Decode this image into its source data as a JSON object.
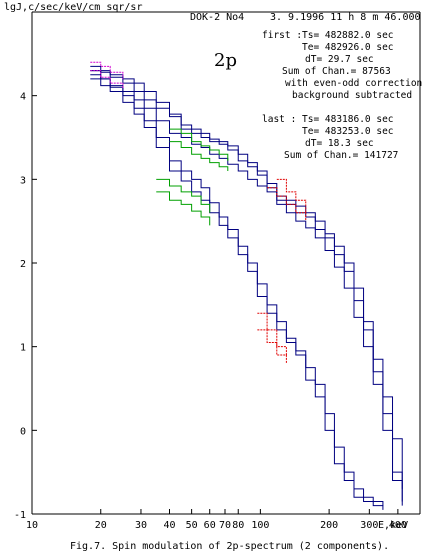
{
  "chart_data": {
    "type": "line",
    "title": "DOK-2 No4",
    "ylabel": "lgJ,c/sec/keV/cm sqr/sr",
    "xlabel": "E,keV",
    "xscale": "log",
    "xlim": [
      10,
      500
    ],
    "ylim": [
      -1,
      5
    ],
    "x_tick_labels": [
      "10",
      "20",
      "30",
      "40",
      "50",
      "60",
      "70",
      "80",
      "100",
      "200",
      "300",
      "400"
    ],
    "x_ticks": [
      10,
      20,
      30,
      40,
      50,
      60,
      70,
      80,
      100,
      200,
      300,
      400
    ],
    "y_ticks": [
      -1,
      0,
      1,
      2,
      3,
      4
    ],
    "y_tick_labels": [
      "-1",
      "0",
      "1",
      "2",
      "3",
      "4"
    ],
    "datetime": "3. 9.1996 11 h  8 m 46.000 s",
    "species_label": "2p",
    "first": {
      "header": "first :",
      "Ts": "Ts=    482882.0 sec",
      "Te": "Te=    482926.0 sec",
      "dT": "dT=    29.7 sec",
      "sum": "Sum of Chan.=       87563",
      "note1": "with even-odd correction",
      "note2": "background subtracted"
    },
    "last": {
      "header": "last :",
      "Ts": "Ts=    483186.0 sec",
      "Te": "Te=    483253.0 sec",
      "dT": "dT=    18.3 sec",
      "sum": "Sum of Chan.=      141727"
    },
    "series": [
      {
        "color": "#000080",
        "x": [
          18,
          20,
          22,
          25,
          28,
          31,
          35,
          40,
          45,
          50,
          55,
          60,
          66,
          72,
          80,
          88,
          97,
          107,
          118,
          130,
          143,
          158,
          174,
          192,
          211,
          233,
          257,
          283,
          312,
          344,
          379,
          418
        ],
        "y": [
          4.3,
          4.28,
          4.25,
          4.15,
          4.05,
          3.95,
          3.85,
          3.75,
          3.6,
          3.55,
          3.5,
          3.45,
          3.42,
          3.35,
          3.22,
          3.15,
          3.05,
          2.9,
          2.75,
          2.7,
          2.6,
          2.55,
          2.4,
          2.3,
          2.1,
          1.9,
          1.55,
          1.2,
          0.7,
          0.2,
          -0.6,
          -0.9
        ]
      },
      {
        "color": "#000080",
        "x": [
          18,
          20,
          22,
          25,
          28,
          31,
          35,
          40,
          45,
          50,
          55,
          60,
          66,
          72,
          80,
          88,
          97,
          107,
          118,
          130,
          143,
          158,
          174,
          192,
          211,
          233,
          257,
          283,
          312,
          344,
          379,
          418
        ],
        "y": [
          4.25,
          4.2,
          4.12,
          4.05,
          3.95,
          3.85,
          3.7,
          3.55,
          3.5,
          3.42,
          3.38,
          3.3,
          3.25,
          3.18,
          3.1,
          3.0,
          2.92,
          2.85,
          2.7,
          2.6,
          2.5,
          2.42,
          2.3,
          2.15,
          1.95,
          1.7,
          1.35,
          1.0,
          0.55,
          0.0,
          -0.5,
          -0.85
        ]
      },
      {
        "color": "#000080",
        "x": [
          18,
          20,
          22,
          25,
          28,
          31,
          35,
          40,
          45,
          50,
          55,
          60,
          66,
          72,
          80,
          88,
          97,
          107,
          118,
          130,
          143,
          158,
          174,
          192,
          211,
          233,
          257,
          283,
          312,
          344,
          379,
          418
        ],
        "y": [
          4.35,
          4.3,
          4.22,
          4.2,
          4.15,
          4.05,
          3.92,
          3.78,
          3.65,
          3.6,
          3.55,
          3.48,
          3.45,
          3.4,
          3.3,
          3.2,
          3.1,
          2.95,
          2.8,
          2.75,
          2.68,
          2.6,
          2.5,
          2.35,
          2.2,
          2.0,
          1.7,
          1.3,
          0.85,
          0.4,
          -0.1,
          -0.7
        ]
      },
      {
        "color": "#000080",
        "x": [
          18,
          20,
          22,
          25,
          28,
          31,
          35,
          40,
          45,
          50,
          55,
          60,
          66,
          72,
          80,
          88,
          97,
          107,
          118,
          130,
          143,
          158,
          174,
          192,
          211,
          233,
          257,
          283,
          312,
          344
        ],
        "y": [
          4.2,
          4.12,
          4.05,
          3.92,
          3.78,
          3.62,
          3.38,
          3.1,
          2.98,
          2.85,
          2.75,
          2.6,
          2.45,
          2.3,
          2.1,
          1.9,
          1.6,
          1.4,
          1.2,
          1.05,
          0.9,
          0.6,
          0.4,
          0.0,
          -0.4,
          -0.6,
          -0.8,
          -0.85,
          -0.9,
          -0.95
        ]
      },
      {
        "color": "#000080",
        "x": [
          18,
          20,
          22,
          25,
          28,
          31,
          35,
          40,
          45,
          50,
          55,
          60,
          66,
          72,
          80,
          88,
          97,
          107,
          118,
          130,
          143,
          158,
          174,
          192,
          211,
          233,
          257,
          283,
          312,
          344
        ],
        "y": [
          4.3,
          4.2,
          4.1,
          4.0,
          3.85,
          3.7,
          3.5,
          3.22,
          3.1,
          3.0,
          2.9,
          2.72,
          2.55,
          2.4,
          2.2,
          2.0,
          1.75,
          1.5,
          1.3,
          1.1,
          0.95,
          0.75,
          0.55,
          0.2,
          -0.2,
          -0.5,
          -0.7,
          -0.8,
          -0.85,
          -0.9
        ]
      },
      {
        "color": "#00a000",
        "x": [
          40,
          45,
          50,
          55,
          60,
          66,
          72
        ],
        "y": [
          3.6,
          3.55,
          3.45,
          3.4,
          3.35,
          3.3,
          3.22
        ]
      },
      {
        "color": "#00a000",
        "x": [
          40,
          45,
          50,
          55,
          60,
          66,
          72
        ],
        "y": [
          3.45,
          3.38,
          3.3,
          3.25,
          3.2,
          3.15,
          3.1
        ]
      },
      {
        "color": "#00a000",
        "x": [
          35,
          40,
          45,
          50,
          55,
          60
        ],
        "y": [
          3.0,
          2.92,
          2.85,
          2.8,
          2.7,
          2.6
        ]
      },
      {
        "color": "#00a000",
        "x": [
          35,
          40,
          45,
          50,
          55,
          60
        ],
        "y": [
          2.85,
          2.75,
          2.7,
          2.62,
          2.55,
          2.45
        ]
      },
      {
        "color": "#e00000",
        "x": [
          118,
          130,
          143,
          158
        ],
        "y": [
          3.0,
          2.85,
          2.75,
          2.6
        ]
      },
      {
        "color": "#e00000",
        "x": [
          107,
          118,
          130,
          143,
          158
        ],
        "y": [
          2.9,
          2.8,
          2.7,
          2.6,
          2.5
        ]
      },
      {
        "color": "#e00000",
        "x": [
          97,
          107,
          118,
          130
        ],
        "y": [
          1.4,
          1.2,
          1.0,
          0.9
        ]
      },
      {
        "color": "#e00000",
        "x": [
          97,
          107,
          118,
          130
        ],
        "y": [
          1.2,
          1.05,
          0.9,
          0.8
        ]
      },
      {
        "color": "#d000d0",
        "x": [
          18,
          20,
          22,
          25
        ],
        "y": [
          4.4,
          4.35,
          4.28,
          4.2
        ]
      },
      {
        "color": "#d000d0",
        "x": [
          18,
          20,
          22,
          25
        ],
        "y": [
          4.3,
          4.22,
          4.15,
          4.08
        ]
      }
    ],
    "grid": false,
    "legend": "none"
  },
  "caption": "Fig.7. Spin modulation of 2p-spectrum (2 components)."
}
